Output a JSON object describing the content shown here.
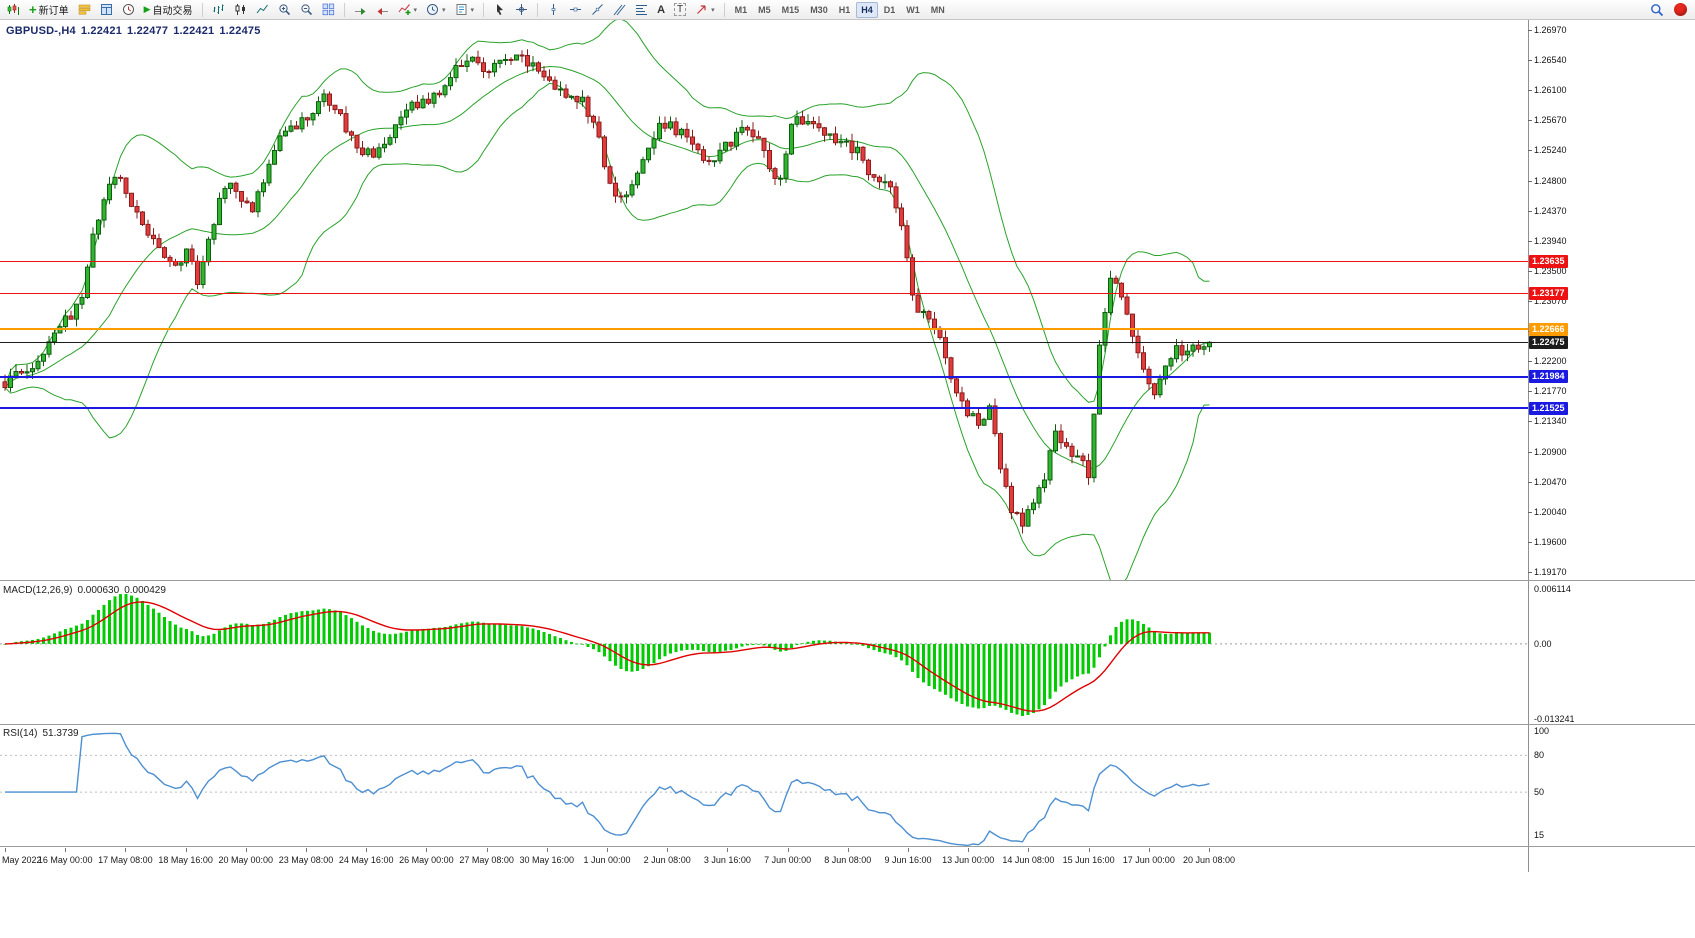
{
  "toolbar": {
    "new_order_label": "新订单",
    "auto_trading_label": "自动交易",
    "timeframes": [
      "M1",
      "M5",
      "M15",
      "M30",
      "H1",
      "H4",
      "D1",
      "W1",
      "MN"
    ],
    "active_timeframe": "H4"
  },
  "header": {
    "symbol_period": "GBPUSD-,H4",
    "open": "1.22421",
    "high": "1.22477",
    "low": "1.22421",
    "close": "1.22475"
  },
  "price_axis": {
    "labels": [
      "1.26970",
      "1.26540",
      "1.26100",
      "1.25670",
      "1.25240",
      "1.24800",
      "1.24370",
      "1.23940",
      "1.23500",
      "1.23070",
      "1.22630",
      "1.22200",
      "1.21770",
      "1.21340",
      "1.20900",
      "1.20470",
      "1.20040",
      "1.19600",
      "1.19170"
    ]
  },
  "time_axis": {
    "labels": [
      "May 2022",
      "16 May 00:00",
      "17 May 08:00",
      "18 May 16:00",
      "20 May 00:00",
      "23 May 08:00",
      "24 May 16:00",
      "26 May 00:00",
      "27 May 08:00",
      "30 May 16:00",
      "1 Jun 00:00",
      "2 Jun 08:00",
      "3 Jun 16:00",
      "7 Jun 00:00",
      "8 Jun 08:00",
      "9 Jun 16:00",
      "13 Jun 00:00",
      "14 Jun 08:00",
      "15 Jun 16:00",
      "17 Jun 00:00",
      "20 Jun 08:00"
    ]
  },
  "levels": [
    {
      "label": "1.23635",
      "price": 1.23635,
      "color": "#ee1111",
      "thickness": 1,
      "role": "resistance-level"
    },
    {
      "label": "1.23177",
      "price": 1.23177,
      "color": "#ee1111",
      "thickness": 1,
      "role": "resistance-level"
    },
    {
      "label": "1.22666",
      "price": 1.22666,
      "color": "#ff9c00",
      "thickness": 2,
      "role": "pivot-level"
    },
    {
      "label": "1.22475",
      "price": 1.22475,
      "color": "#1c1c1c",
      "thickness": 1,
      "role": "current-price"
    },
    {
      "label": "1.21984",
      "price": 1.21984,
      "color": "#1a1ae0",
      "thickness": 2,
      "role": "support-level"
    },
    {
      "label": "1.21525",
      "price": 1.21525,
      "color": "#1a1ae0",
      "thickness": 2,
      "role": "support-level"
    }
  ],
  "macd": {
    "title": "MACD(12,26,9)",
    "main_value": "0.000630",
    "signal_value": "0.000429",
    "axis_max": "0.006114",
    "axis_zero": "0.00",
    "axis_min": "-0.013241"
  },
  "rsi": {
    "title": "RSI(14)",
    "value": "51.3739",
    "axis_labels": [
      "100",
      "80",
      "50",
      "15"
    ],
    "axis_values": [
      100,
      80,
      50,
      15
    ],
    "level_lines": [
      80,
      50
    ]
  },
  "chart_data": {
    "type": "candlestick",
    "symbol": "GBPUSD",
    "timeframe": "H4",
    "price_min_visible": 1.1917,
    "price_max_visible": 1.2697,
    "candle_count": 220,
    "seed": 20220620,
    "last_candle_ohlc": {
      "open": 1.22421,
      "high": 1.22477,
      "low": 1.22421,
      "close": 1.22475
    },
    "price_waypoints": [
      [
        0,
        1.2185
      ],
      [
        3,
        1.2205
      ],
      [
        6,
        1.2218
      ],
      [
        9,
        1.2268
      ],
      [
        12,
        1.2288
      ],
      [
        14,
        1.2308
      ],
      [
        16,
        1.2405
      ],
      [
        19,
        1.2478
      ],
      [
        21,
        1.2482
      ],
      [
        23,
        1.2445
      ],
      [
        26,
        1.2408
      ],
      [
        29,
        1.2362
      ],
      [
        31,
        1.2352
      ],
      [
        33,
        1.2385
      ],
      [
        35,
        1.2338
      ],
      [
        38,
        1.242
      ],
      [
        40,
        1.2475
      ],
      [
        42,
        1.2465
      ],
      [
        45,
        1.244
      ],
      [
        47,
        1.2482
      ],
      [
        49,
        1.253
      ],
      [
        52,
        1.2555
      ],
      [
        55,
        1.2575
      ],
      [
        58,
        1.26
      ],
      [
        61,
        1.2572
      ],
      [
        64,
        1.2525
      ],
      [
        67,
        1.2515
      ],
      [
        70,
        1.2545
      ],
      [
        73,
        1.2585
      ],
      [
        76,
        1.2595
      ],
      [
        79,
        1.2608
      ],
      [
        82,
        1.2648
      ],
      [
        85,
        1.2652
      ],
      [
        88,
        1.2636
      ],
      [
        91,
        1.2655
      ],
      [
        93,
        1.2668
      ],
      [
        96,
        1.2645
      ],
      [
        99,
        1.2618
      ],
      [
        102,
        1.2606
      ],
      [
        105,
        1.2598
      ],
      [
        108,
        1.254
      ],
      [
        110,
        1.2472
      ],
      [
        113,
        1.2452
      ],
      [
        116,
        1.2505
      ],
      [
        119,
        1.2568
      ],
      [
        122,
        1.2552
      ],
      [
        125,
        1.254
      ],
      [
        128,
        1.2502
      ],
      [
        131,
        1.2528
      ],
      [
        134,
        1.2555
      ],
      [
        137,
        1.254
      ],
      [
        139,
        1.2495
      ],
      [
        141,
        1.2478
      ],
      [
        143,
        1.2562
      ],
      [
        146,
        1.2572
      ],
      [
        149,
        1.2552
      ],
      [
        152,
        1.2535
      ],
      [
        155,
        1.2525
      ],
      [
        158,
        1.2478
      ],
      [
        161,
        1.2472
      ],
      [
        163,
        1.242
      ],
      [
        165,
        1.231
      ],
      [
        167,
        1.2285
      ],
      [
        169,
        1.2268
      ],
      [
        171,
        1.2225
      ],
      [
        173,
        1.2178
      ],
      [
        175,
        1.2148
      ],
      [
        177,
        1.2128
      ],
      [
        179,
        1.2152
      ],
      [
        181,
        1.2065
      ],
      [
        183,
        1.2005
      ],
      [
        185,
        1.199
      ],
      [
        187,
        1.2022
      ],
      [
        189,
        1.2055
      ],
      [
        191,
        1.2118
      ],
      [
        193,
        1.2095
      ],
      [
        195,
        1.2082
      ],
      [
        197,
        1.2058
      ],
      [
        199,
        1.2238
      ],
      [
        201,
        1.2342
      ],
      [
        203,
        1.232
      ],
      [
        205,
        1.2255
      ],
      [
        207,
        1.2205
      ],
      [
        209,
        1.2178
      ],
      [
        211,
        1.2215
      ],
      [
        213,
        1.2238
      ],
      [
        215,
        1.2232
      ],
      [
        217,
        1.2242
      ],
      [
        219,
        1.22475
      ]
    ],
    "indicators": {
      "bollinger": {
        "period": 20,
        "deviation": 2,
        "color": "#2aa22a"
      },
      "macd": {
        "fast": 12,
        "slow": 26,
        "signal": 9,
        "histogram_color": "#00cc00",
        "signal_color": "#e00000",
        "last_main": 0.00063,
        "last_signal": 0.000429
      },
      "rsi": {
        "period": 14,
        "last_value": 51.3739,
        "color": "#4d8fd1"
      }
    },
    "candle_colors": {
      "up_fill": "#2fb52f",
      "up_stroke": "#0f5c0f",
      "down_fill": "#e23b3b",
      "down_stroke": "#8a1c1c"
    }
  }
}
